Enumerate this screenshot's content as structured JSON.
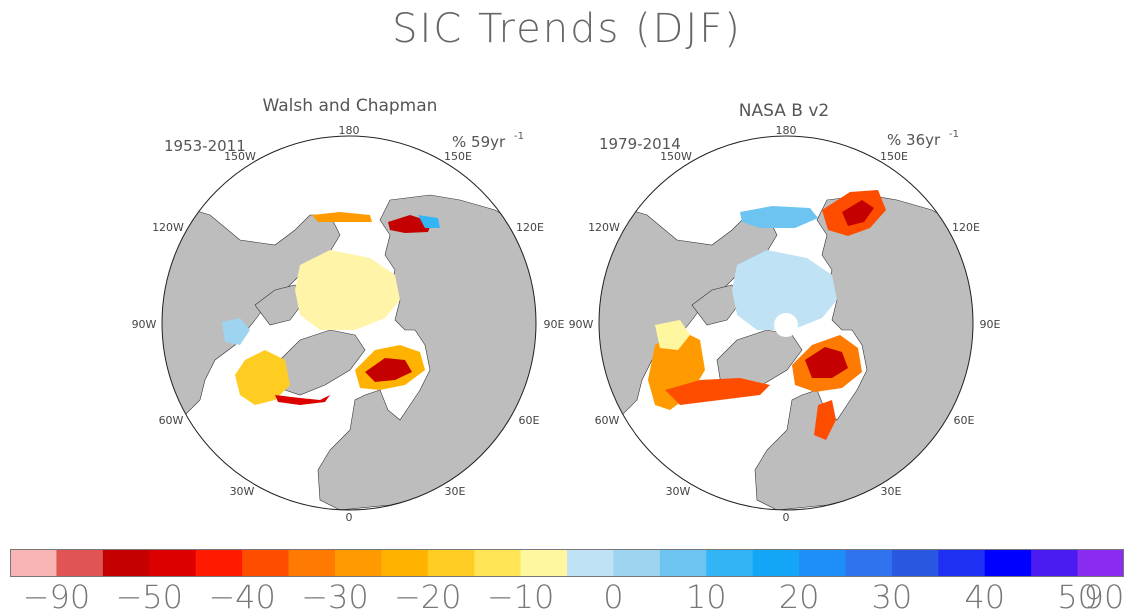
{
  "title": "SIC Trends (DJF)",
  "panels": [
    {
      "name": "Walsh and Chapman",
      "period": "1953-2011",
      "units": "% 59yr",
      "units_exp": "-1",
      "lon_labels": [
        "180",
        "150W",
        "150E",
        "120W",
        "120E",
        "90W",
        "90E",
        "60W",
        "60E",
        "30W",
        "30E",
        "0"
      ]
    },
    {
      "name": "NASA B v2",
      "period": "1979-2014",
      "units": "% 36yr",
      "units_exp": "-1",
      "lon_labels": [
        "180",
        "150W",
        "150E",
        "120W",
        "120E",
        "90W",
        "90E",
        "60W",
        "60E",
        "30W",
        "30E",
        "0"
      ]
    }
  ],
  "colorbar": {
    "labels": [
      "−90",
      "−50",
      "−40",
      "−30",
      "−20",
      "−10",
      "0",
      "10",
      "20",
      "30",
      "40",
      "50",
      "90"
    ],
    "colors": [
      "#f8b4b4",
      "#e05454",
      "#c40000",
      "#dd0000",
      "#ff1a00",
      "#ff4d00",
      "#ff7a00",
      "#ff9a00",
      "#ffb300",
      "#ffcc22",
      "#ffe455",
      "#fff7a0",
      "#bfe3f4",
      "#9ed4f0",
      "#6ec4f0",
      "#33b5f5",
      "#13a6f7",
      "#1f8ff8",
      "#2f74ee",
      "#2a57e0",
      "#1d30f3",
      "#0000ff",
      "#4a1cf2",
      "#8a2cf0"
    ]
  },
  "colors": {
    "land": "#bdbdbd",
    "ocean": "#ffffff",
    "coast": "#333333",
    "neutral_ice": "#fff4a8"
  }
}
